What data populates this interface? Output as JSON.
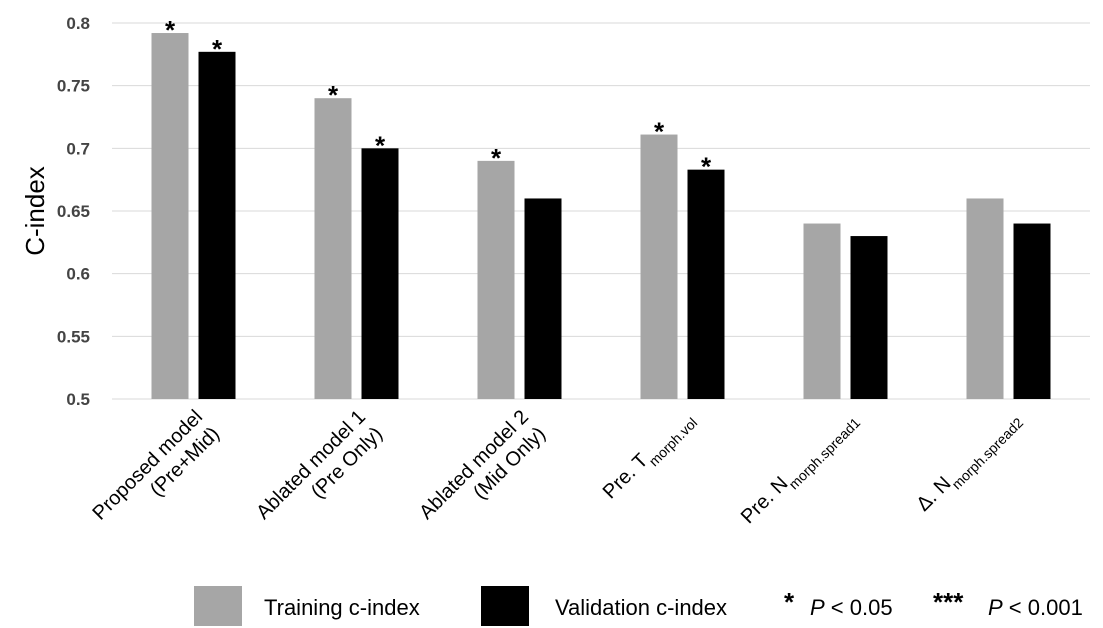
{
  "chart_data": {
    "type": "bar",
    "ylabel": "C-index",
    "xlabel": "",
    "ylim": [
      0.5,
      0.8
    ],
    "yticks": [
      "0.5",
      "0.55",
      "0.6",
      "0.65",
      "0.7",
      "0.75",
      "0.8"
    ],
    "grid": true,
    "legend_position": "bottom",
    "categories": [
      {
        "line1": "Proposed model",
        "line2": "(Pre+Mid)"
      },
      {
        "line1": "Ablated model 1",
        "line2": "(Pre Only)"
      },
      {
        "line1": "Ablated model 2",
        "line2": "(Mid Only)"
      },
      {
        "main": "Pre. T",
        "sub": "morph.vol"
      },
      {
        "main": "Pre. N",
        "sub": "morph.spread1"
      },
      {
        "main": "Δ. N",
        "sub": "morph.spread2"
      }
    ],
    "series": [
      {
        "name": "Training c-index",
        "color": "#a6a6a6",
        "values": [
          0.792,
          0.74,
          0.69,
          0.711,
          0.64,
          0.66
        ],
        "significance": [
          "*",
          "*",
          "*",
          "*",
          "",
          ""
        ]
      },
      {
        "name": "Validation c-index",
        "color": "#000000",
        "values": [
          0.777,
          0.7,
          0.66,
          0.683,
          0.63,
          0.64
        ],
        "significance": [
          "*",
          "*",
          "",
          "*",
          "",
          ""
        ]
      }
    ],
    "significance_legend": [
      {
        "mark": "*",
        "p_label": "P",
        "text": " < 0.05"
      },
      {
        "mark": "***",
        "p_label": "P",
        "text": " < 0.001"
      }
    ]
  }
}
